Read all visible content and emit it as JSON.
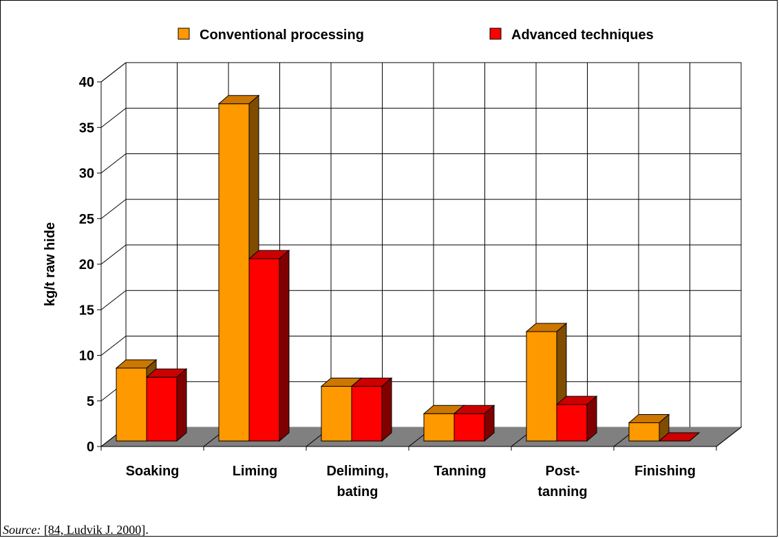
{
  "chart_data": {
    "type": "bar",
    "xlabel": "",
    "ylabel": "kg/t raw hide",
    "ylim": [
      0,
      40
    ],
    "yticks": [
      0,
      5,
      10,
      15,
      20,
      25,
      30,
      35,
      40
    ],
    "grid": true,
    "legend_position": "top",
    "categories": [
      [
        "Soaking"
      ],
      [
        "Liming"
      ],
      [
        "Deliming,",
        "bating"
      ],
      [
        "Tanning"
      ],
      [
        "Post-",
        "tanning"
      ],
      [
        "Finishing"
      ]
    ],
    "series": [
      {
        "name": "Conventional processing",
        "values": [
          8,
          37,
          6,
          3,
          12,
          2
        ],
        "color": "#FF9900",
        "top_color": "#CC7700",
        "side_color": "#7F4C00"
      },
      {
        "name": "Advanced techniques",
        "values": [
          7,
          20,
          6,
          3,
          4,
          0
        ],
        "color": "#FF0000",
        "top_color": "#CC0000",
        "side_color": "#800000"
      }
    ]
  },
  "source": {
    "label": "Source:",
    "reference": "[84, Ludvik J. 2000]",
    "suffix": "."
  }
}
